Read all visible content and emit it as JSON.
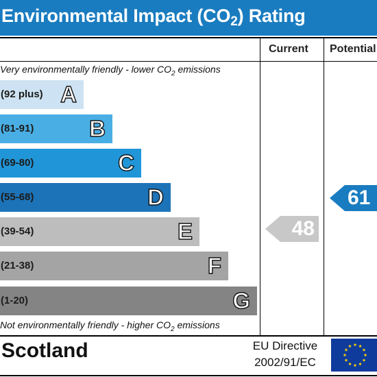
{
  "header": {
    "title_prefix": "Environmental Impact (CO",
    "title_sub": "2",
    "title_suffix": ") Rating"
  },
  "columns": {
    "current": "Current",
    "potential": "Potential"
  },
  "notes": {
    "top_prefix": "Very environmentally friendly - lower CO",
    "top_sub": "2",
    "top_suffix": " emissions",
    "bottom_prefix": "Not environmentally friendly - higher CO",
    "bottom_sub": "2",
    "bottom_suffix": " emissions"
  },
  "footer": {
    "country": "Scotland",
    "directive_line1": "EU Directive",
    "directive_line2": "2002/91/EC",
    "flag_icon": "eu-flag-icon"
  },
  "colors": {
    "header": "#1a7cc0",
    "arrow_current": "#c8c8c8",
    "arrow_potential": "#1a7cc0"
  },
  "chart_data": {
    "type": "bar",
    "bands": [
      {
        "letter": "A",
        "range": "(92 plus)",
        "color": "#cde3f3"
      },
      {
        "letter": "B",
        "range": "(81-91)",
        "color": "#49aee4"
      },
      {
        "letter": "C",
        "range": "(69-80)",
        "color": "#2096d8"
      },
      {
        "letter": "D",
        "range": "(55-68)",
        "color": "#1d73b7"
      },
      {
        "letter": "E",
        "range": "(39-54)",
        "color": "#bdbdbd"
      },
      {
        "letter": "F",
        "range": "(21-38)",
        "color": "#a4a4a4"
      },
      {
        "letter": "G",
        "range": "(1-20)",
        "color": "#848484"
      }
    ],
    "current": {
      "value": 48,
      "band": "E"
    },
    "potential": {
      "value": 61,
      "band": "D"
    }
  }
}
